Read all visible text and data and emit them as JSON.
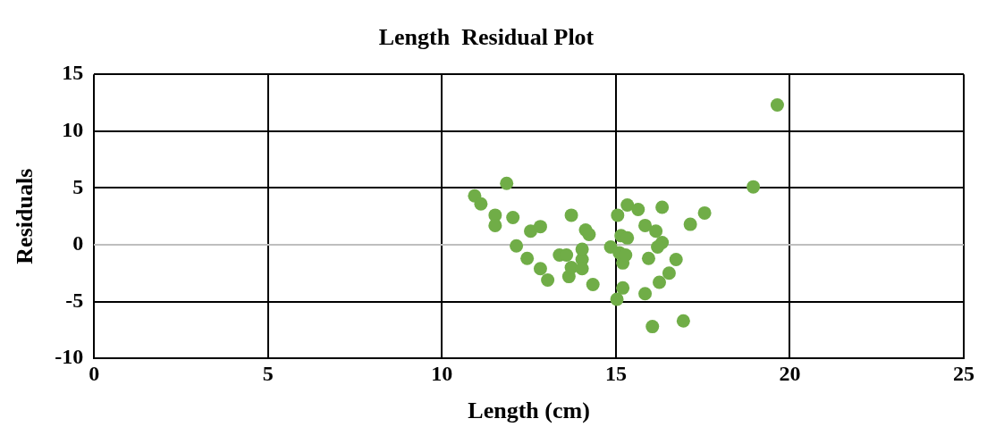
{
  "chart_data": {
    "type": "scatter",
    "title": "Length  Residual Plot",
    "xlabel": "Length (cm)",
    "ylabel": "Residuals",
    "xlim": [
      0,
      25
    ],
    "xticks": [
      0,
      5,
      10,
      15,
      20,
      25
    ],
    "ylim": [
      -10,
      15
    ],
    "yticks": [
      -10,
      -5,
      0,
      5,
      10,
      15
    ],
    "grid": true,
    "legend": false,
    "marker": "circle",
    "series": [
      {
        "color": "#70ad47",
        "x": [
          10.94,
          11.12,
          11.86,
          11.53,
          11.53,
          12.04,
          12.14,
          12.45,
          12.55,
          12.83,
          12.83,
          13.04,
          13.38,
          13.58,
          13.72,
          13.65,
          13.72,
          14.03,
          14.03,
          14.03,
          14.13,
          14.23,
          14.34,
          14.85,
          15.05,
          15.03,
          15.1,
          15.15,
          15.33,
          15.2,
          15.2,
          15.28,
          15.33,
          15.64,
          15.84,
          16.15,
          16.33,
          16.2,
          15.94,
          15.84,
          16.25,
          16.53,
          16.73,
          16.33,
          16.05,
          16.94,
          17.14,
          17.55,
          18.95,
          19.64
        ],
        "values": [
          4.3,
          3.6,
          5.4,
          2.6,
          1.7,
          2.4,
          -0.1,
          -1.2,
          1.2,
          1.6,
          -2.1,
          -3.1,
          -0.9,
          -0.9,
          2.6,
          -2.8,
          -2.0,
          -1.3,
          -0.4,
          -2.1,
          1.3,
          0.9,
          -3.5,
          -0.2,
          2.6,
          -4.8,
          -0.7,
          0.8,
          0.6,
          -1.6,
          -3.8,
          -0.9,
          3.5,
          3.1,
          1.7,
          1.2,
          0.2,
          -0.2,
          -1.2,
          -4.3,
          -3.3,
          -2.5,
          -1.3,
          3.3,
          -7.2,
          -6.7,
          1.8,
          2.8,
          5.1,
          12.3
        ]
      }
    ]
  }
}
